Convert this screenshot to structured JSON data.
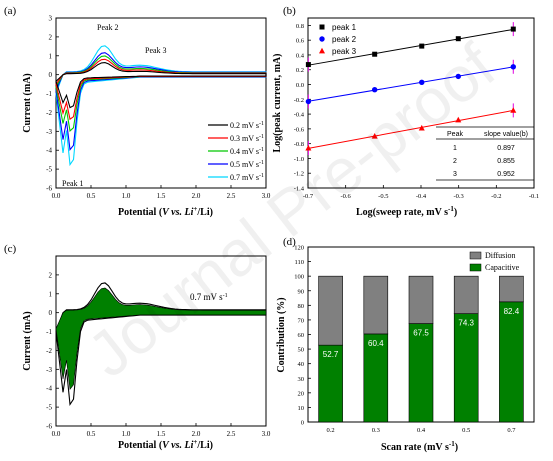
{
  "watermark": "Journal Pre-proof",
  "chart_data": [
    {
      "panel": "(a)",
      "type": "line",
      "xlabel_parts": [
        "Potential (",
        "V vs. Li",
        "+",
        "/Li)"
      ],
      "ylabel": "Current (mA)",
      "xlim": [
        0.0,
        3.0
      ],
      "ylim": [
        -6,
        3
      ],
      "xticks": [
        "0.0",
        "0.5",
        "1.0",
        "1.5",
        "2.0",
        "2.5",
        "3.0"
      ],
      "yticks": [
        "-6",
        "-5",
        "-4",
        "-3",
        "-2",
        "-1",
        "0",
        "1",
        "2",
        "3"
      ],
      "annotations": [
        "Peak 2",
        "Peak 3",
        "Peak 1"
      ],
      "legend_suffix": "mV s",
      "legend_sup": "-1",
      "series": [
        {
          "name": "0.2 mV s-1",
          "label": "0.2 mV s",
          "color": "#000000",
          "peak_cath": -1.9,
          "peak_anod": 0.7,
          "scale": 0.35
        },
        {
          "name": "0.3 mV s-1",
          "label": "0.3 mV s",
          "color": "#ff0000",
          "peak_cath": -2.6,
          "peak_anod": 0.9,
          "scale": 0.5
        },
        {
          "name": "0.4 mV s-1",
          "label": "0.4 mV s",
          "color": "#00c800",
          "peak_cath": -3.3,
          "peak_anod": 1.1,
          "scale": 0.65
        },
        {
          "name": "0.5 mV s-1",
          "label": "0.5 mV s",
          "color": "#0000ff",
          "peak_cath": -4.4,
          "peak_anod": 1.3,
          "scale": 0.82
        },
        {
          "name": "0.7 mV s-1",
          "label": "0.7 mV s",
          "color": "#00d8ff",
          "peak_cath": -5.3,
          "peak_anod": 1.7,
          "scale": 1.0
        }
      ]
    },
    {
      "panel": "(b)",
      "type": "scatter",
      "xlabel": "Log(sweep rate, mV s",
      "xlabel_sup": "-1",
      "xlabel_end": ")",
      "ylabel": "Log(peak current, mA)",
      "xlim": [
        -0.7,
        -0.1
      ],
      "ylim": [
        -1.4,
        0.9
      ],
      "xticks": [
        "-0.7",
        "-0.6",
        "-0.5",
        "-0.4",
        "-0.3",
        "-0.2",
        "-0.1"
      ],
      "yticks": [
        "-1.4",
        "-1.2",
        "-1.0",
        "-0.8",
        "-0.6",
        "-0.4",
        "-0.2",
        "0.0",
        "0.2",
        "0.4",
        "0.6",
        "0.8"
      ],
      "x": [
        -0.699,
        -0.523,
        -0.398,
        -0.301,
        -0.155
      ],
      "series": [
        {
          "name": "peak 1",
          "color": "#000000",
          "marker": "square",
          "values": [
            0.27,
            0.41,
            0.52,
            0.62,
            0.75
          ]
        },
        {
          "name": "peak 2",
          "color": "#0000ff",
          "marker": "circle",
          "values": [
            -0.23,
            -0.07,
            0.03,
            0.11,
            0.24
          ]
        },
        {
          "name": "peak 3",
          "color": "#ff0000",
          "marker": "triangle",
          "values": [
            -0.86,
            -0.7,
            -0.59,
            -0.48,
            -0.35
          ]
        }
      ],
      "table": {
        "headers": [
          "Peak",
          "slope value(b)"
        ],
        "rows": [
          [
            "1",
            "0.897"
          ],
          [
            "2",
            "0.855"
          ],
          [
            "3",
            "0.952"
          ]
        ]
      }
    },
    {
      "panel": "(c)",
      "type": "area",
      "xlabel_parts": [
        "Potential (",
        "V vs. Li",
        "+",
        "/Li)"
      ],
      "ylabel": "Current (mA)",
      "xlim": [
        0.0,
        3.0
      ],
      "ylim": [
        -6,
        3
      ],
      "xticks": [
        "0.0",
        "0.5",
        "1.0",
        "1.5",
        "2.0",
        "2.5",
        "3.0"
      ],
      "yticks": [
        "-6",
        "-5",
        "-4",
        "-3",
        "-2",
        "-1",
        "0",
        "1",
        "2"
      ],
      "annotation": "0.7 mV s",
      "annotation_sup": "-1",
      "fill_color": "#008000"
    },
    {
      "panel": "(d)",
      "type": "bar",
      "xlabel": "Scan rate (mV s",
      "xlabel_sup": "-1",
      "xlabel_end": ")",
      "ylabel": "Contribution (%)",
      "ylim": [
        0,
        120
      ],
      "yticks": [
        "0",
        "10",
        "20",
        "30",
        "40",
        "50",
        "60",
        "70",
        "80",
        "90",
        "100",
        "110",
        "120"
      ],
      "categories": [
        "0.2",
        "0.3",
        "0.4",
        "0.5",
        "0.7"
      ],
      "series": [
        {
          "name": "Capacitive",
          "color": "#008000",
          "values": [
            52.7,
            60.4,
            67.5,
            74.3,
            82.4
          ]
        },
        {
          "name": "Diffusion",
          "color": "#808080",
          "values": [
            47.3,
            39.6,
            32.5,
            25.7,
            17.6
          ]
        }
      ],
      "labels": [
        "52.7",
        "60.4",
        "67.5",
        "74.3",
        "82.4"
      ]
    }
  ]
}
